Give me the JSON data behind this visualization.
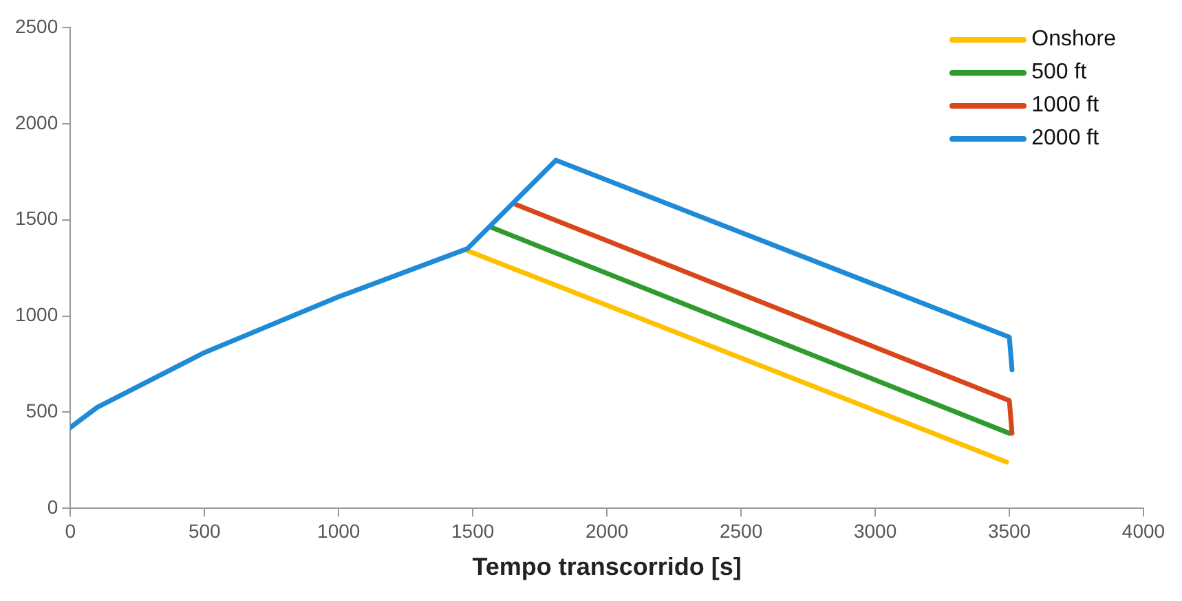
{
  "chart_data": {
    "type": "line",
    "xlabel": "Tempo transcorrido [s]",
    "xlim": [
      0,
      4000
    ],
    "xticks": [
      0,
      500,
      1000,
      1500,
      2000,
      2500,
      3000,
      3500,
      4000
    ],
    "ylim": [
      0,
      2500
    ],
    "yticks": [
      0,
      500,
      1000,
      1500,
      2000,
      2500
    ],
    "grid": false,
    "legend": "top right",
    "marker": "none",
    "line_style": "solid",
    "series": [
      {
        "name": "Onshore",
        "color": "#ffc000",
        "x": [
          1480,
          3490
        ],
        "values": [
          1340,
          240
        ]
      },
      {
        "name": "500 ft",
        "color": "#2e9b2e",
        "x": [
          1570,
          3500
        ],
        "values": [
          1460,
          390
        ]
      },
      {
        "name": "1000 ft",
        "color": "#d9461a",
        "x": [
          1660,
          3500,
          3510
        ],
        "values": [
          1580,
          560,
          390
        ]
      },
      {
        "name": "2000 ft",
        "color": "#1f8ad6",
        "x": [
          0,
          100,
          500,
          1000,
          1480,
          1810,
          3500,
          3510
        ],
        "values": [
          420,
          525,
          810,
          1100,
          1350,
          1810,
          890,
          720
        ]
      }
    ]
  }
}
